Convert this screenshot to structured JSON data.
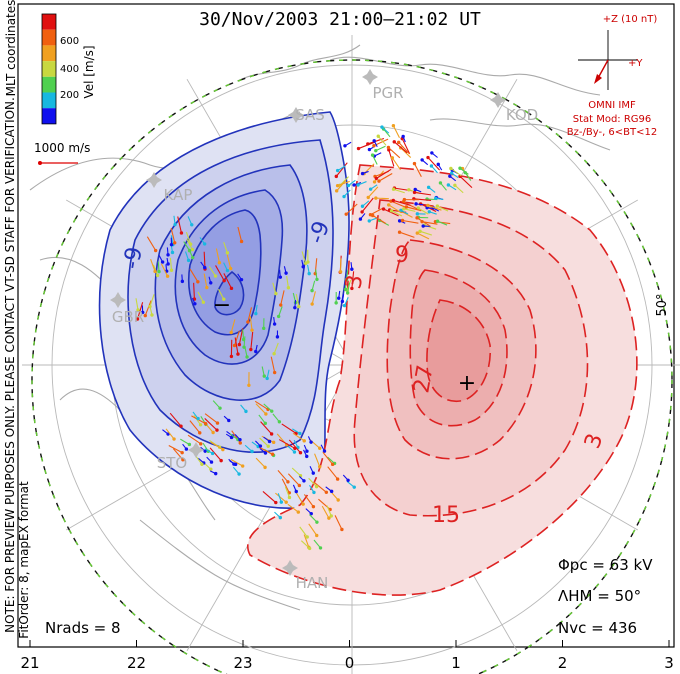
{
  "title": "30/Nov/2003 21:00–21:02 UT",
  "coordinates_label": "MLT coordinates",
  "velocity_scale": {
    "label": "Vel [m/s]",
    "ticks": [
      "200",
      "400",
      "600"
    ],
    "colors": [
      "#1010ee",
      "#18b8e0",
      "#50d050",
      "#c8d840",
      "#f0a020",
      "#f06010",
      "#e01010"
    ]
  },
  "reference_vector": {
    "label": "1000 m/s",
    "color": "#dd0000"
  },
  "watermark": "NOTE: FOR PREVIEW PURPOSES ONLY. PLEASE CONTACT VT-SD STAFF FOR VERIFICATION.",
  "fit_info": "FitOrder: 8, mapEX format",
  "imf_box": {
    "axis_label": "+Z (10 nT)",
    "y_label": "+Y",
    "source": "OMNI IMF",
    "model": "Stat Mod: RG96",
    "conditions": "Bz-/By-, 6<BT<12"
  },
  "stats": {
    "phi_pc": "Φpc = 63 kV",
    "lambda_hm": "ΛHM = 50°",
    "n_vc": "Nvc = 436",
    "n_rads": "Nrads = 8"
  },
  "latitude_label": "50°",
  "mlt_ticks": [
    "21",
    "22",
    "23",
    "0",
    "1",
    "2",
    "3"
  ],
  "stations": [
    "PGR",
    "KOD",
    "KAP",
    "SAS",
    "GBR",
    "STO",
    "HAN"
  ],
  "convection": {
    "negative_cell": {
      "label": "−",
      "contour_labels": [
        "-9",
        "-9"
      ]
    },
    "positive_cell": {
      "label": "+",
      "contour_labels": [
        "3",
        "9",
        "27",
        "15",
        "3"
      ]
    }
  },
  "colors": {
    "negative": "#2233bb",
    "positive": "#dd2222",
    "boundary": "#66cc33"
  }
}
